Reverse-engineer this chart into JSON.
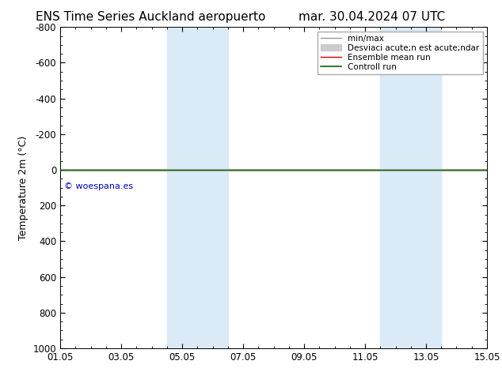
{
  "title_left": "ENS Time Series Auckland aeropuerto",
  "title_right": "mar. 30.04.2024 07 UTC",
  "ylabel": "Temperature 2m (°C)",
  "watermark": "© woespana.es",
  "ylim_top": -700,
  "ylim_bottom": 1000,
  "yticks": [
    -800,
    -600,
    -400,
    -200,
    0,
    200,
    400,
    600,
    800,
    1000
  ],
  "x_start": 0,
  "x_end": 14,
  "xtick_labels": [
    "01.05",
    "03.05",
    "05.05",
    "07.05",
    "09.05",
    "11.05",
    "13.05",
    "15.05"
  ],
  "xtick_positions": [
    0,
    2,
    4,
    6,
    8,
    10,
    12,
    14
  ],
  "blue_bands": [
    [
      3.5,
      4.5
    ],
    [
      4.5,
      5.5
    ],
    [
      10.5,
      11.5
    ],
    [
      11.5,
      12.5
    ]
  ],
  "band_color": "#daeaf7",
  "line_y": 0,
  "ensemble_mean_color": "#cc0000",
  "control_run_color": "#006600",
  "minmax_color": "#999999",
  "std_color": "#cccccc",
  "background_color": "#ffffff",
  "title_fontsize": 11,
  "axis_fontsize": 9,
  "tick_fontsize": 8.5,
  "legend_fontsize": 7.5,
  "watermark_color": "#0000bb"
}
